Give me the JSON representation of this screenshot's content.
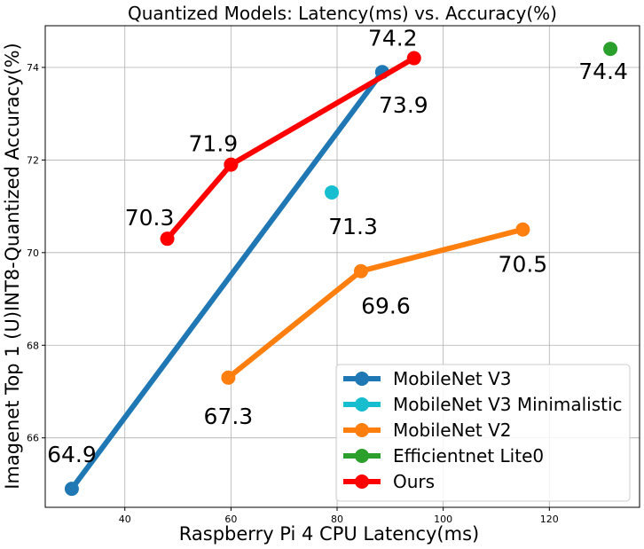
{
  "chart_data": {
    "type": "line",
    "title": "Quantized Models: Latency(ms) vs. Accuracy(%)",
    "xlabel": "Raspberry Pi 4 CPU Latency(ms)",
    "ylabel": "Imagenet Top 1 (U)INT8-Quantized Accuracy(%)",
    "xlim": [
      25,
      137
    ],
    "ylim": [
      64.5,
      74.9
    ],
    "xticks": [
      40,
      60,
      80,
      100,
      120
    ],
    "yticks": [
      66,
      68,
      70,
      72,
      74
    ],
    "grid": true,
    "legend_position": "lower-right",
    "series": [
      {
        "name": "MobileNet V3",
        "color": "#1f77b4",
        "points": [
          {
            "x": 30,
            "y": 64.9,
            "label": "64.9"
          },
          {
            "x": 88.5,
            "y": 73.9,
            "label": "73.9"
          }
        ]
      },
      {
        "name": "MobileNet V3 Minimalistic",
        "color": "#17becf",
        "points": [
          {
            "x": 79,
            "y": 71.3,
            "label": "71.3"
          }
        ]
      },
      {
        "name": "MobileNet V2",
        "color": "#ff7f0e",
        "points": [
          {
            "x": 59.5,
            "y": 67.3,
            "label": "67.3"
          },
          {
            "x": 84.5,
            "y": 69.6,
            "label": "69.6"
          },
          {
            "x": 115,
            "y": 70.5,
            "label": "70.5"
          }
        ]
      },
      {
        "name": "Efficientnet Lite0",
        "color": "#2ca02c",
        "points": [
          {
            "x": 131.5,
            "y": 74.4,
            "label": "74.4"
          }
        ]
      },
      {
        "name": "Ours",
        "color": "#ff0000",
        "points": [
          {
            "x": 48,
            "y": 70.3,
            "label": "70.3"
          },
          {
            "x": 60,
            "y": 71.9,
            "label": "71.9"
          },
          {
            "x": 94.5,
            "y": 74.2,
            "label": "74.2"
          }
        ]
      }
    ]
  }
}
